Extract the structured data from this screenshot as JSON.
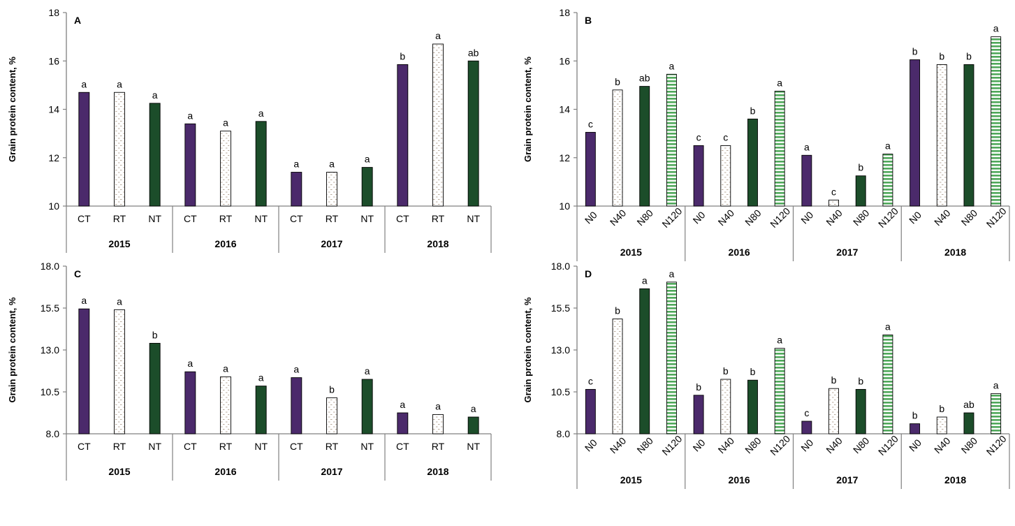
{
  "colors": {
    "purple": "#4b2a6b",
    "green": "#1c4d2a",
    "axis": "#808080",
    "dots": "#b0a090",
    "green_dash": "#4fa85a"
  },
  "chart_data": [
    {
      "panel": "A",
      "type": "bar",
      "ylabel": "Grain protein content, %",
      "ylim": [
        10,
        18
      ],
      "yticks": [
        "10",
        "12",
        "14",
        "16",
        "18"
      ],
      "groups": [
        "2015",
        "2016",
        "2017",
        "2018"
      ],
      "categories": [
        "CT",
        "RT",
        "NT"
      ],
      "values": [
        [
          14.7,
          14.7,
          14.25
        ],
        [
          13.4,
          13.1,
          13.5
        ],
        [
          11.4,
          11.4,
          11.6
        ],
        [
          15.85,
          16.7,
          16.0
        ]
      ],
      "letters": [
        [
          "a",
          "a",
          "a"
        ],
        [
          "a",
          "a",
          "a"
        ],
        [
          "a",
          "a",
          "a"
        ],
        [
          "b",
          "a",
          "ab"
        ]
      ],
      "rotate_labels": false
    },
    {
      "panel": "B",
      "type": "bar",
      "ylabel": "Grain protein content, %",
      "ylim": [
        10,
        18
      ],
      "yticks": [
        "10",
        "12",
        "14",
        "16",
        "18"
      ],
      "groups": [
        "2015",
        "2016",
        "2017",
        "2018"
      ],
      "categories": [
        "N0",
        "N40",
        "N80",
        "N120"
      ],
      "values": [
        [
          13.05,
          14.8,
          14.95,
          15.45
        ],
        [
          12.5,
          12.5,
          13.6,
          14.75
        ],
        [
          12.1,
          10.25,
          11.25,
          12.15
        ],
        [
          16.05,
          15.85,
          15.85,
          17.0
        ]
      ],
      "letters": [
        [
          "c",
          "b",
          "ab",
          "a"
        ],
        [
          "c",
          "c",
          "b",
          "a"
        ],
        [
          "a",
          "c",
          "b",
          "a"
        ],
        [
          "b",
          "b",
          "b",
          "a"
        ]
      ],
      "rotate_labels": true
    },
    {
      "panel": "C",
      "type": "bar",
      "ylabel": "Grain protein content, %",
      "ylim": [
        8,
        18
      ],
      "yticks": [
        "8.0",
        "10.5",
        "13.0",
        "15.5",
        "18.0"
      ],
      "groups": [
        "2015",
        "2016",
        "2017",
        "2018"
      ],
      "categories": [
        "CT",
        "RT",
        "NT"
      ],
      "values": [
        [
          15.45,
          15.4,
          13.4
        ],
        [
          11.7,
          11.4,
          10.85
        ],
        [
          11.35,
          10.15,
          11.25
        ],
        [
          9.25,
          9.15,
          9.0
        ]
      ],
      "letters": [
        [
          "a",
          "a",
          "b"
        ],
        [
          "a",
          "a",
          "a"
        ],
        [
          "a",
          "b",
          "a"
        ],
        [
          "a",
          "a",
          "a"
        ]
      ],
      "rotate_labels": false
    },
    {
      "panel": "D",
      "type": "bar",
      "ylabel": "Grain protein content, %",
      "ylim": [
        8,
        18
      ],
      "yticks": [
        "8.0",
        "10.5",
        "13.0",
        "15.5",
        "18.0"
      ],
      "groups": [
        "2015",
        "2016",
        "2017",
        "2018"
      ],
      "categories": [
        "N0",
        "N40",
        "N80",
        "N120"
      ],
      "values": [
        [
          10.65,
          14.85,
          16.65,
          17.05
        ],
        [
          10.3,
          11.25,
          11.2,
          13.1
        ],
        [
          8.75,
          10.7,
          10.65,
          13.9
        ],
        [
          8.6,
          9.0,
          9.25,
          10.4
        ]
      ],
      "letters": [
        [
          "c",
          "b",
          "a",
          "a"
        ],
        [
          "b",
          "b",
          "b",
          "a"
        ],
        [
          "c",
          "b",
          "b",
          "a"
        ],
        [
          "b",
          "b",
          "ab",
          "a"
        ]
      ],
      "rotate_labels": true
    }
  ]
}
